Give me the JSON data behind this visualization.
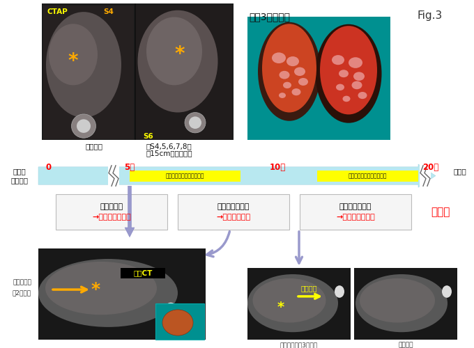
{
  "fig_title": "Fig.3",
  "bg_color": "#ffffff",
  "top_left_label1": "CTAP",
  "top_left_label2": "S4",
  "s6_label": "S6",
  "top_right_label": "肝右3区域切除",
  "top_ct_note1": "初回再発",
  "top_ct_note2": "肝S4,5,6,7,8、",
  "top_ct_note3": "径15cmの巨大腫瘍",
  "timeline_left_label1": "大腸癌",
  "timeline_left_label2": "他院手術",
  "timeline_right_label": "治療年",
  "timeline_year0": "0",
  "timeline_year5": "5年",
  "timeline_year10": "10年",
  "timeline_year20": "20年",
  "chemo_label1": "化学療法（抗がん剤治療）",
  "chemo_label2": "化学療法（抗がん剤治療）",
  "event1_line1": "初回肝再発",
  "event1_line2": "→肝右３区域切除",
  "event2_line1": "２回目残肝再発",
  "event2_line2": "→残肝部分切除",
  "event3_line1": "３回目残肝再発",
  "event3_line2": "→化学療法で消失",
  "no_recurrence": "無再発",
  "bottom_left_label1": "肝再発腫瘍",
  "bottom_left_label2": "【2回目】",
  "bottom_left_ct_label": "造影CT",
  "bottom_right_label1": "肝再発腫瘍（3回目）",
  "bottom_right_label2": "腫瘍消失",
  "bottom_right_chemo": "化学療法",
  "timeline_color": "#b8e8f0",
  "chemo_bar_color": "#ffff00",
  "year_color": "#ff0000",
  "event_title_color": "#000000",
  "event_sub_color": "#ff0000",
  "no_recurrence_color": "#ff0000",
  "fig_title_color": "#333333",
  "blue_arrow_color": "#9999cc",
  "ct_dark": "#1c1c1c",
  "ct_liver": "#666060",
  "ct_liver2": "#707070",
  "specimen_bg": "#009090",
  "specimen_color1": "#cc3333",
  "specimen_color2": "#bb4422"
}
